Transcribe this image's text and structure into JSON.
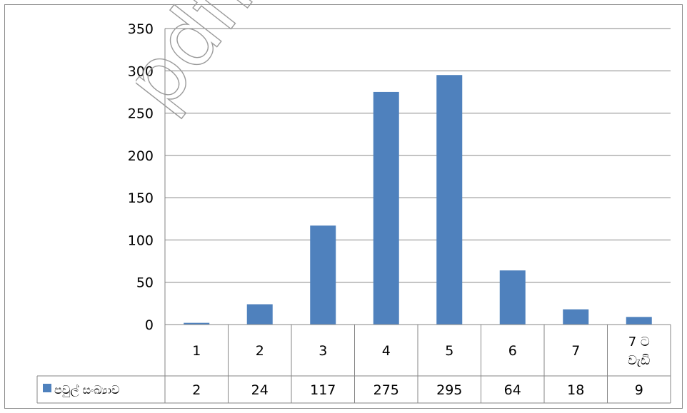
{
  "chart_data": {
    "type": "bar",
    "categories": [
      "1",
      "2",
      "3",
      "4",
      "5",
      "6",
      "7",
      "7 ට වැඩි"
    ],
    "series": [
      {
        "name": "පවුල් සංඛ්‍යාව",
        "values": [
          2,
          24,
          117,
          275,
          295,
          64,
          18,
          9
        ],
        "color": "#4f81bd"
      }
    ],
    "ylim": [
      0,
      350
    ],
    "yticks": [
      "0",
      "50",
      "100",
      "150",
      "200",
      "250",
      "300",
      "350"
    ],
    "grid": true,
    "legend": "data-table",
    "data_table": true
  },
  "watermark": {
    "text": "pdfMe"
  }
}
